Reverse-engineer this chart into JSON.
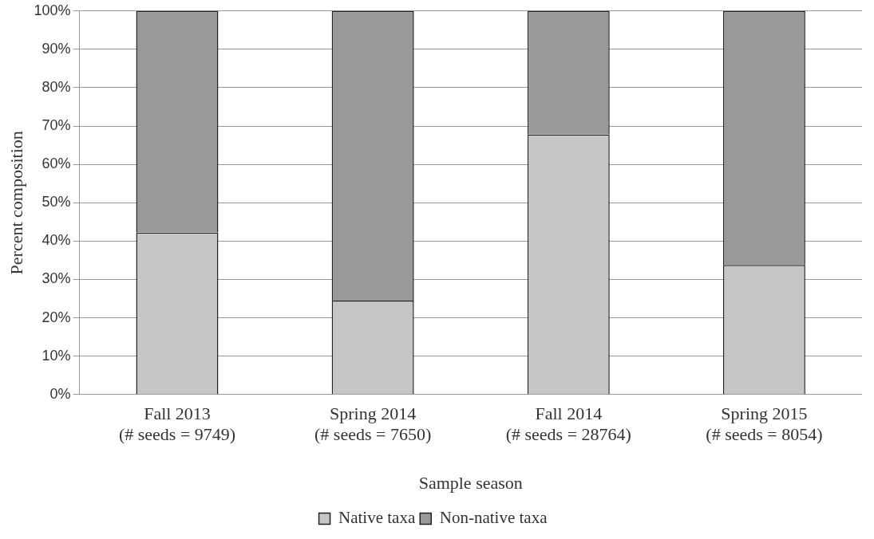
{
  "chart_data": {
    "type": "bar",
    "stacked": true,
    "xlabel": "Sample season",
    "ylabel": "Percent composition",
    "categories": [
      "Fall 2013\n(# seeds = 9749)",
      "Spring 2014\n(# seeds = 7650)",
      "Fall 2014\n(# seeds = 28764)",
      "Spring 2015\n(# seeds = 8054)"
    ],
    "series": [
      {
        "name": "Native taxa",
        "color": "#c6c6c6",
        "values": [
          42.2,
          24.5,
          67.8,
          33.8
        ]
      },
      {
        "name": "Non-native taxa",
        "color": "#999999",
        "values": [
          57.8,
          75.5,
          32.2,
          66.2
        ]
      }
    ],
    "ylim": [
      0,
      100
    ],
    "yticks": [
      {
        "value": 0,
        "label": "0%"
      },
      {
        "value": 10,
        "label": "10%"
      },
      {
        "value": 20,
        "label": "20%"
      },
      {
        "value": 30,
        "label": "30%"
      },
      {
        "value": 40,
        "label": "40%"
      },
      {
        "value": 50,
        "label": "50%"
      },
      {
        "value": 60,
        "label": "60%"
      },
      {
        "value": 70,
        "label": "70%"
      },
      {
        "value": 80,
        "label": "80%"
      },
      {
        "value": 90,
        "label": "90%"
      },
      {
        "value": 100,
        "label": "100%"
      }
    ],
    "grid": "y",
    "legend": "bottom"
  }
}
